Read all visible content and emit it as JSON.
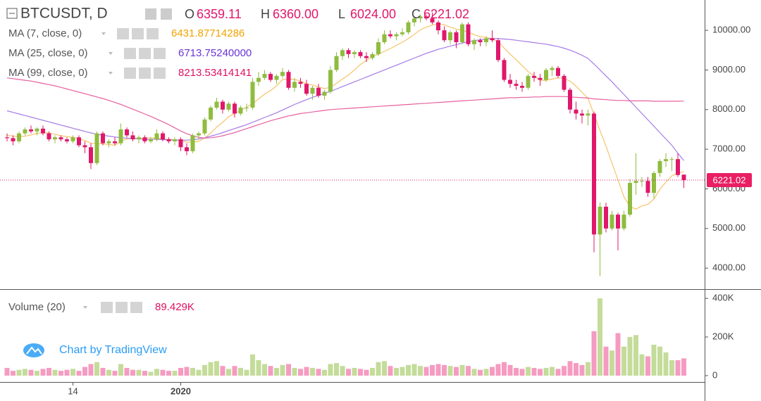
{
  "chart_data": {
    "type": "candlestick",
    "title": "BTCUSDT, D",
    "ohlc_legend": [
      {
        "key": "O",
        "value": "6359.11"
      },
      {
        "key": "H",
        "value": "6360.00"
      },
      {
        "key": "L",
        "value": "6024.00"
      },
      {
        "key": "C",
        "value": "6221.02"
      }
    ],
    "price_label": "6221.02",
    "watermark": "Chart by TradingView",
    "up_color": "#8fbc3f",
    "down_color": "#e0176b",
    "categories": [
      null,
      null,
      null,
      null,
      null,
      null,
      null,
      null,
      null,
      null,
      null,
      "14",
      null,
      null,
      null,
      null,
      null,
      null,
      null,
      null,
      null,
      null,
      null,
      null,
      null,
      null,
      null,
      null,
      null,
      "2020",
      null,
      null,
      null,
      null,
      null,
      null,
      null,
      null,
      null,
      null,
      null,
      null,
      null,
      null,
      null,
      null,
      null,
      null,
      null,
      null,
      null,
      null,
      null,
      null,
      null,
      null,
      null,
      null,
      null,
      null,
      null,
      null,
      null,
      null,
      null,
      null,
      null,
      null,
      null,
      null,
      null,
      null,
      null,
      null,
      null,
      null,
      null,
      null,
      null,
      null,
      null,
      null,
      null,
      null,
      null,
      null,
      null,
      null,
      null,
      null,
      null,
      null,
      null,
      null,
      null,
      null,
      null,
      null,
      null,
      null,
      null,
      null,
      null,
      null,
      null,
      null,
      null,
      null,
      null,
      null,
      null,
      null,
      null,
      null
    ],
    "open": [
      7300,
      7280,
      7200,
      7400,
      7500,
      7450,
      7520,
      7400,
      7250,
      7300,
      7250,
      7200,
      7300,
      7100,
      7050,
      6650,
      7400,
      7150,
      7200,
      7150,
      7500,
      7350,
      7250,
      7300,
      7200,
      7250,
      7400,
      7250,
      7200,
      7250,
      7050,
      6950,
      7350,
      7400,
      7750,
      8050,
      8200,
      8000,
      8150,
      7900,
      8050,
      8050,
      8700,
      8800,
      8900,
      8750,
      8850,
      8950,
      8550,
      8700,
      8650,
      8400,
      8550,
      8350,
      8450,
      9000,
      9350,
      9500,
      9400,
      9450,
      9350,
      9300,
      9400,
      9700,
      9900,
      9850,
      9900,
      9950,
      10200,
      10300,
      10350,
      10300,
      10200,
      10000,
      9750,
      9950,
      9700,
      10150,
      9650,
      9750,
      9700,
      9800,
      9750,
      9250,
      8750,
      8650,
      8600,
      8550,
      8850,
      8800,
      8750,
      9000,
      9050,
      8850,
      8500,
      8000,
      7900,
      7850,
      7900,
      4850,
      5550,
      5000,
      5350,
      5000,
      5350,
      6150,
      6200,
      6200,
      5900,
      6400,
      6700,
      6750,
      6750,
      6359.11
    ],
    "high": [
      7400,
      7350,
      7450,
      7550,
      7600,
      7550,
      7600,
      7450,
      7350,
      7350,
      7300,
      7350,
      7350,
      7200,
      7150,
      7450,
      7450,
      7250,
      7300,
      7650,
      7550,
      7450,
      7350,
      7350,
      7300,
      7500,
      7450,
      7300,
      7300,
      7300,
      7150,
      7400,
      7450,
      7800,
      8100,
      8300,
      8250,
      8200,
      8200,
      8100,
      8150,
      8800,
      8950,
      9000,
      8950,
      8900,
      9050,
      9000,
      8800,
      8800,
      8750,
      8600,
      8650,
      8500,
      9100,
      9450,
      9550,
      9550,
      9500,
      9500,
      9450,
      9450,
      9800,
      10000,
      10000,
      9950,
      10050,
      10250,
      10350,
      10400,
      10400,
      10450,
      10250,
      10100,
      10000,
      10000,
      10200,
      10200,
      9800,
      9800,
      9850,
      10000,
      9800,
      9300,
      8900,
      8750,
      8700,
      8900,
      8950,
      8900,
      9050,
      9100,
      9100,
      8900,
      8550,
      8200,
      8000,
      8000,
      7950,
      5650,
      5650,
      5450,
      5400,
      5450,
      6250,
      6900,
      6300,
      6300,
      6450,
      6750,
      6900,
      6800,
      6900,
      6360
    ],
    "low": [
      7200,
      7100,
      7150,
      7350,
      7400,
      7350,
      7350,
      7200,
      7150,
      7200,
      7150,
      7150,
      7050,
      6900,
      6500,
      6600,
      7100,
      7050,
      7100,
      7100,
      7300,
      7200,
      7150,
      7150,
      7150,
      7200,
      7200,
      7150,
      7100,
      6950,
      6850,
      6900,
      7250,
      7350,
      7700,
      8000,
      7900,
      7950,
      7800,
      7850,
      7950,
      8000,
      8600,
      8750,
      8700,
      8650,
      8800,
      8500,
      8450,
      8550,
      8350,
      8250,
      8300,
      8250,
      8400,
      8950,
      9250,
      9300,
      9300,
      9300,
      9200,
      9250,
      9350,
      9650,
      9800,
      9750,
      9850,
      9900,
      10100,
      10200,
      10250,
      10150,
      9900,
      9700,
      9650,
      9550,
      9650,
      9600,
      9500,
      9600,
      9600,
      9700,
      9200,
      8700,
      8550,
      8500,
      8450,
      8500,
      8700,
      8600,
      8700,
      8850,
      8800,
      8450,
      7900,
      7750,
      7650,
      7600,
      4400,
      3800,
      4900,
      4950,
      4450,
      4950,
      5300,
      5850,
      6050,
      5800,
      5750,
      6300,
      6550,
      6450,
      6300,
      6024
    ],
    "close": [
      7280,
      7200,
      7400,
      7500,
      7450,
      7520,
      7400,
      7250,
      7300,
      7250,
      7200,
      7300,
      7100,
      7050,
      6650,
      7400,
      7150,
      7200,
      7150,
      7500,
      7350,
      7250,
      7300,
      7200,
      7250,
      7400,
      7250,
      7200,
      7250,
      7050,
      6950,
      7350,
      7400,
      7750,
      8050,
      8200,
      8000,
      8150,
      7900,
      8050,
      8050,
      8700,
      8800,
      8900,
      8750,
      8850,
      8950,
      8550,
      8700,
      8650,
      8400,
      8550,
      8350,
      8450,
      9000,
      9350,
      9500,
      9400,
      9450,
      9350,
      9300,
      9400,
      9700,
      9900,
      9850,
      9900,
      9950,
      10200,
      10300,
      10350,
      10300,
      10200,
      10000,
      9750,
      9950,
      9700,
      10150,
      9650,
      9750,
      9700,
      9800,
      9750,
      9250,
      8750,
      8650,
      8600,
      8550,
      8850,
      8800,
      8750,
      9000,
      9050,
      8850,
      8500,
      8000,
      7900,
      7850,
      7900,
      4850,
      5550,
      5000,
      5350,
      5000,
      5350,
      6150,
      6200,
      6200,
      5900,
      6400,
      6700,
      6750,
      6750,
      6350,
      6221.02
    ],
    "series": [
      {
        "name": "MA (7, close, 0)",
        "legend_value": "6431.87714286",
        "color": "#f6c36a",
        "label_color": "#f0a400",
        "values": [
          7350,
          7330,
          7320,
          7330,
          7360,
          7400,
          7420,
          7410,
          7380,
          7340,
          7320,
          7300,
          7260,
          7220,
          7150,
          7150,
          7130,
          7120,
          7100,
          7200,
          7260,
          7280,
          7260,
          7280,
          7290,
          7280,
          7260,
          7250,
          7240,
          7220,
          7180,
          7180,
          7200,
          7280,
          7410,
          7560,
          7680,
          7820,
          7900,
          7980,
          8060,
          8150,
          8270,
          8390,
          8480,
          8600,
          8760,
          8770,
          8760,
          8720,
          8650,
          8620,
          8570,
          8530,
          8560,
          8660,
          8770,
          8870,
          9000,
          9140,
          9240,
          9340,
          9400,
          9470,
          9540,
          9620,
          9700,
          9790,
          9900,
          10010,
          10080,
          10130,
          10170,
          10140,
          10080,
          10030,
          10000,
          9960,
          9890,
          9840,
          9820,
          9790,
          9710,
          9550,
          9400,
          9260,
          9110,
          8960,
          8850,
          8740,
          8740,
          8770,
          8800,
          8790,
          8720,
          8590,
          8440,
          8280,
          7880,
          7470,
          7080,
          6650,
          6230,
          5800,
          5550,
          5490,
          5570,
          5610,
          5740,
          5990,
          6170,
          6330,
          6400,
          6431.87714286
        ]
      },
      {
        "name": "MA (25, close, 0)",
        "legend_value": "6713.75240000",
        "color": "#a57be6",
        "label_color": "#6a34d8",
        "values": [
          7970,
          7930,
          7890,
          7850,
          7810,
          7770,
          7730,
          7690,
          7650,
          7610,
          7570,
          7530,
          7490,
          7450,
          7410,
          7380,
          7350,
          7330,
          7310,
          7290,
          7280,
          7270,
          7260,
          7250,
          7250,
          7250,
          7240,
          7240,
          7230,
          7230,
          7230,
          7240,
          7260,
          7290,
          7330,
          7370,
          7420,
          7470,
          7520,
          7570,
          7620,
          7680,
          7740,
          7800,
          7860,
          7920,
          7990,
          8060,
          8130,
          8190,
          8250,
          8310,
          8360,
          8410,
          8460,
          8520,
          8580,
          8640,
          8700,
          8760,
          8820,
          8880,
          8940,
          9000,
          9060,
          9120,
          9180,
          9240,
          9300,
          9360,
          9420,
          9470,
          9520,
          9560,
          9600,
          9640,
          9680,
          9710,
          9740,
          9760,
          9780,
          9790,
          9790,
          9780,
          9770,
          9750,
          9730,
          9710,
          9690,
          9670,
          9650,
          9620,
          9590,
          9550,
          9500,
          9440,
          9370,
          9290,
          9150,
          9000,
          8850,
          8700,
          8540,
          8380,
          8220,
          8060,
          7900,
          7740,
          7580,
          7420,
          7260,
          7100,
          6900,
          6713.7524
        ]
      },
      {
        "name": "MA (99, close, 0)",
        "legend_value": "8213.53414141",
        "color": "#e7609f",
        "label_color": "#e0115f",
        "values": [
          8800,
          8780,
          8760,
          8740,
          8720,
          8690,
          8660,
          8630,
          8600,
          8560,
          8520,
          8480,
          8440,
          8400,
          8360,
          8320,
          8280,
          8230,
          8180,
          8130,
          8070,
          8010,
          7950,
          7890,
          7830,
          7760,
          7690,
          7620,
          7540,
          7460,
          7390,
          7340,
          7300,
          7280,
          7290,
          7310,
          7340,
          7380,
          7420,
          7470,
          7520,
          7570,
          7620,
          7670,
          7720,
          7760,
          7800,
          7840,
          7870,
          7900,
          7920,
          7940,
          7960,
          7980,
          8000,
          8010,
          8020,
          8030,
          8040,
          8050,
          8060,
          8070,
          8080,
          8090,
          8100,
          8110,
          8120,
          8130,
          8140,
          8150,
          8160,
          8170,
          8180,
          8190,
          8200,
          8210,
          8220,
          8230,
          8240,
          8250,
          8260,
          8270,
          8280,
          8290,
          8300,
          8300,
          8310,
          8310,
          8320,
          8320,
          8330,
          8330,
          8330,
          8330,
          8320,
          8310,
          8300,
          8290,
          8270,
          8260,
          8250,
          8240,
          8230,
          8230,
          8220,
          8220,
          8220,
          8220,
          8210,
          8210,
          8210,
          8210,
          8210,
          8213.53414141
        ]
      }
    ],
    "ylim": [
      3470,
      10765
    ],
    "yticks": [
      {
        "value": 4000,
        "label": "4000.00"
      },
      {
        "value": 5000,
        "label": "5000.00"
      },
      {
        "value": 6000,
        "label": "6000.00"
      },
      {
        "value": 7000,
        "label": "7000.00"
      },
      {
        "value": 8000,
        "label": "8000.00"
      },
      {
        "value": 9000,
        "label": "9000.00"
      },
      {
        "value": 10000,
        "label": "10000.00"
      }
    ],
    "volume": {
      "name": "Volume (20)",
      "legend_value": "89.429K",
      "up_color": "#c4dc9a",
      "down_color": "#f59bc1",
      "values": [
        40,
        25,
        30,
        35,
        30,
        25,
        35,
        40,
        30,
        25,
        30,
        35,
        25,
        45,
        60,
        70,
        40,
        30,
        25,
        60,
        40,
        30,
        30,
        25,
        20,
        35,
        30,
        25,
        25,
        40,
        45,
        40,
        30,
        55,
        70,
        75,
        50,
        35,
        50,
        40,
        30,
        110,
        80,
        60,
        50,
        40,
        55,
        60,
        40,
        35,
        45,
        40,
        35,
        30,
        60,
        65,
        50,
        35,
        40,
        35,
        30,
        40,
        70,
        75,
        50,
        40,
        45,
        55,
        60,
        50,
        45,
        55,
        60,
        55,
        50,
        45,
        55,
        50,
        35,
        30,
        35,
        45,
        60,
        70,
        55,
        40,
        35,
        45,
        40,
        35,
        40,
        45,
        35,
        50,
        75,
        65,
        55,
        70,
        230,
        400,
        150,
        130,
        220,
        150,
        200,
        210,
        110,
        100,
        160,
        150,
        120,
        80,
        80,
        89.429
      ],
      "ylim": [
        -33,
        444
      ],
      "yticks": [
        0,
        {
          "value": 200,
          "label": "200K"
        },
        {
          "value": 400,
          "label": "400K"
        }
      ]
    }
  }
}
